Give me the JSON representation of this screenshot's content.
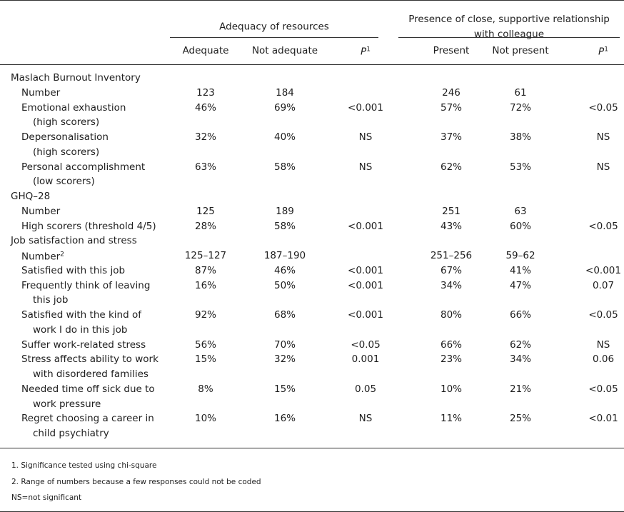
{
  "header": {
    "groups": [
      {
        "title": "Adequacy of resources",
        "columns": [
          "Adequate",
          "Not adequate",
          {
            "text": "P",
            "sup": "1"
          }
        ]
      },
      {
        "title": "Presence of close, supportive relationship with colleague",
        "columns": [
          "Present",
          "Not present",
          {
            "text": "P",
            "sup": "1"
          }
        ]
      }
    ]
  },
  "table": {
    "sections": [
      {
        "title": "Maslach Burnout Inventory",
        "rows": [
          {
            "label": [
              "Number"
            ],
            "cells": [
              "123",
              "184",
              null,
              "246",
              "61",
              null
            ]
          },
          {
            "label": [
              "Emotional exhaustion",
              "(high scorers)"
            ],
            "cells": [
              "46%",
              "69%",
              "<0.001",
              "57%",
              "72%",
              "<0.05"
            ]
          },
          {
            "label": [
              "Depersonalisation",
              "(high scorers)"
            ],
            "cells": [
              "32%",
              "40%",
              "NS",
              "37%",
              "38%",
              "NS"
            ]
          },
          {
            "label": [
              "Personal accomplishment",
              "(low scorers)"
            ],
            "cells": [
              "63%",
              "58%",
              "NS",
              "62%",
              "53%",
              "NS"
            ]
          }
        ]
      },
      {
        "title": "GHQ–28",
        "rows": [
          {
            "label": [
              "Number"
            ],
            "cells": [
              "125",
              "189",
              null,
              "251",
              "63",
              null
            ]
          },
          {
            "label": [
              "High scorers (threshold 4/5)"
            ],
            "cells": [
              "28%",
              "58%",
              "<0.001",
              "43%",
              "60%",
              "<0.05"
            ]
          }
        ]
      },
      {
        "title": "Job satisfaction and stress",
        "rows": [
          {
            "label": [
              {
                "text": "Number",
                "sup": "2"
              }
            ],
            "cells": [
              "125–127",
              "187–190",
              null,
              "251–256",
              "59–62",
              null
            ]
          },
          {
            "label": [
              "Satisfied with this job"
            ],
            "cells": [
              "87%",
              "46%",
              "<0.001",
              "67%",
              "41%",
              "<0.001"
            ]
          },
          {
            "label": [
              "Frequently think of leaving",
              "this job"
            ],
            "cells": [
              "16%",
              "50%",
              "<0.001",
              "34%",
              "47%",
              "0.07"
            ]
          },
          {
            "label": [
              "Satisfied with the kind of",
              "work I do in this job"
            ],
            "cells": [
              "92%",
              "68%",
              "<0.001",
              "80%",
              "66%",
              "<0.05"
            ]
          },
          {
            "label": [
              "Suffer work-related stress"
            ],
            "cells": [
              "56%",
              "70%",
              "<0.05",
              "66%",
              "62%",
              "NS"
            ]
          },
          {
            "label": [
              "Stress affects ability to work",
              "with disordered families"
            ],
            "cells": [
              "15%",
              "32%",
              "0.001",
              "23%",
              "34%",
              "0.06"
            ]
          },
          {
            "label": [
              "Needed time off sick due to",
              "work pressure"
            ],
            "cells": [
              "8%",
              "15%",
              "0.05",
              "10%",
              "21%",
              "<0.05"
            ]
          },
          {
            "label": [
              "Regret choosing a career in",
              "child psychiatry"
            ],
            "cells": [
              "10%",
              "16%",
              "NS",
              "11%",
              "25%",
              "<0.01"
            ]
          }
        ]
      }
    ]
  },
  "footnotes": [
    "1.  Significance tested using chi-square",
    "2.  Range of numbers because a few responses could not be coded",
    "NS=not significant"
  ]
}
